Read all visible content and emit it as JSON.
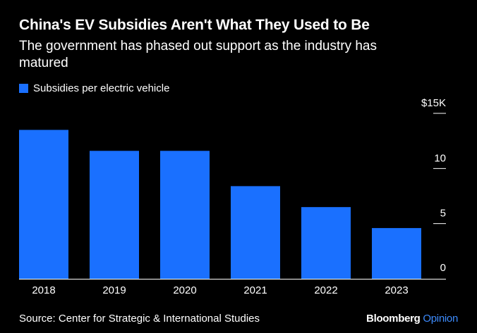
{
  "title": "China's EV Subsidies Aren't What They Used to Be",
  "subtitle": "The government has phased out support as the industry has matured",
  "source": "Source: Center for Strategic & International Studies",
  "brand": {
    "name": "Bloomberg",
    "suffix": "Opinion",
    "suffix_color": "#3d8bfd"
  },
  "colors": {
    "bar": "#1a70ff",
    "background": "#000000",
    "text": "#ffffff"
  },
  "chart_data": {
    "type": "bar",
    "categories": [
      "2018",
      "2019",
      "2020",
      "2021",
      "2022",
      "2023"
    ],
    "series": [
      {
        "name": "Subsidies per electric vehicle",
        "values": [
          13.5,
          11.6,
          11.6,
          8.4,
          6.5,
          4.6
        ]
      }
    ],
    "ylim": [
      0,
      15
    ],
    "yticks": [
      0,
      5,
      10,
      15
    ],
    "ytick_labels": [
      "0",
      "5",
      "10",
      "$15K"
    ],
    "axis_side": "right",
    "legend": "top-left"
  }
}
